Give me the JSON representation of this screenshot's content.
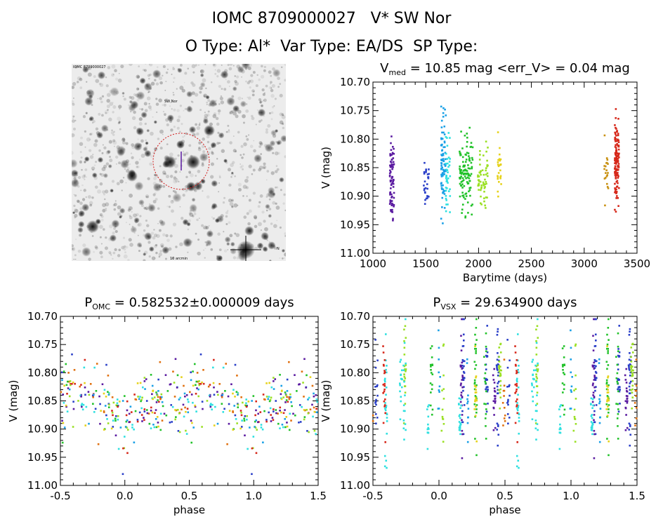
{
  "header": {
    "line1": "IOMC 8709000027   V* SW Nor",
    "line2": "O Type: Al*  Var Type: EA/DS  SP Type:"
  },
  "image_panel": {
    "label_tl": "IOMC 8709000027",
    "label_mid": "SW Nor",
    "label_bl": "...",
    "label_bottom": "10 arcmin",
    "label_br": "N",
    "colors": {
      "background": "#ececec",
      "star": "#111111",
      "circle": "#d11a1a",
      "text_blue": "#1a1adf"
    }
  },
  "chart_data": [
    {
      "id": "timeseries",
      "type": "scatter",
      "title_main": "V",
      "title_sub": "med",
      "title_rest": " = 10.85 mag <err_V> = 0.04 mag",
      "xlabel": "Barytime (days)",
      "ylabel": "V (mag)",
      "xlim": [
        1000,
        3500
      ],
      "ylim": [
        11.0,
        10.7
      ],
      "y_reversed": true,
      "xticks": [
        1000,
        1500,
        2000,
        2500,
        3000,
        3500
      ],
      "yticks": [
        10.7,
        10.75,
        10.8,
        10.85,
        10.9,
        10.95,
        11.0
      ],
      "series": [
        {
          "name": "s1",
          "color": "#5a1aa0",
          "x_min": 1160,
          "x_max": 1200,
          "count": 75,
          "v_mean": 10.87,
          "v_sd": 0.035
        },
        {
          "name": "s2",
          "color": "#2a3fc8",
          "x_min": 1480,
          "x_max": 1530,
          "count": 28,
          "v_mean": 10.88,
          "v_sd": 0.02
        },
        {
          "name": "s3",
          "color": "#1aa0e6",
          "x_min": 1645,
          "x_max": 1690,
          "count": 85,
          "v_mean": 10.85,
          "v_sd": 0.045
        },
        {
          "name": "s4",
          "color": "#2fe0e0",
          "x_min": 1690,
          "x_max": 1730,
          "count": 40,
          "v_mean": 10.87,
          "v_sd": 0.035
        },
        {
          "name": "s5",
          "color": "#22c22a",
          "x_min": 1820,
          "x_max": 1945,
          "count": 120,
          "v_mean": 10.86,
          "v_sd": 0.03
        },
        {
          "name": "s6",
          "color": "#9be025",
          "x_min": 1990,
          "x_max": 2090,
          "count": 60,
          "v_mean": 10.87,
          "v_sd": 0.028
        },
        {
          "name": "s7",
          "color": "#e6d21a",
          "x_min": 2180,
          "x_max": 2215,
          "count": 25,
          "v_mean": 10.86,
          "v_sd": 0.025
        },
        {
          "name": "s8",
          "color": "#c89010",
          "x_min": 3190,
          "x_max": 3230,
          "count": 20,
          "v_mean": 10.85,
          "v_sd": 0.025
        },
        {
          "name": "s9",
          "color": "#d6281a",
          "x_min": 3290,
          "x_max": 3330,
          "count": 130,
          "v_mean": 10.84,
          "v_sd": 0.035
        }
      ]
    },
    {
      "id": "phase_omc",
      "type": "scatter",
      "title_main": "P",
      "title_sub": "OMC",
      "title_rest": " = 0.582532±0.000009 days",
      "xlabel": "phase",
      "ylabel": "V (mag)",
      "xlim": [
        -0.5,
        1.5
      ],
      "ylim": [
        11.0,
        10.7
      ],
      "y_reversed": true,
      "xticks": [
        -0.5,
        0.0,
        0.5,
        1.0,
        1.5
      ],
      "xtick_labels": [
        "-0.5",
        "0.0",
        "0.5",
        "1.0",
        "1.5"
      ],
      "yticks": [
        10.7,
        10.75,
        10.8,
        10.85,
        10.9,
        10.95,
        11.0
      ],
      "colors": [
        "#5a1aa0",
        "#2a3fc8",
        "#1aa0e6",
        "#2fe0e0",
        "#22c22a",
        "#9be025",
        "#e6d21a",
        "#d6281a",
        "#e07010"
      ],
      "model": {
        "base": 10.855,
        "primary_depth": 0.04,
        "primary_phase": 0.0,
        "secondary_bump": -0.03,
        "secondary_phase": 0.6,
        "scatter": 0.03
      },
      "points_per_unit_phase": 260
    },
    {
      "id": "phase_vsx",
      "type": "scatter",
      "title_main": "P",
      "title_sub": "VSX",
      "title_rest": " = 29.634900 days",
      "xlabel": "phase",
      "ylabel": "V (mag)",
      "xlim": [
        -0.5,
        1.5
      ],
      "ylim": [
        11.0,
        10.7
      ],
      "y_reversed": true,
      "xticks": [
        -0.5,
        0.0,
        0.5,
        1.0,
        1.5
      ],
      "xtick_labels": [
        "-0.5",
        "0.0",
        "0.5",
        "1.0",
        "1.5"
      ],
      "yticks": [
        10.7,
        10.75,
        10.8,
        10.85,
        10.9,
        10.95,
        11.0
      ],
      "colors": [
        "#5a1aa0",
        "#2a3fc8",
        "#1aa0e6",
        "#2fe0e0",
        "#22c22a",
        "#9be025",
        "#e6d21a",
        "#d6281a",
        "#e07010"
      ],
      "clumps": 22,
      "points_per_clump": 18
    }
  ]
}
